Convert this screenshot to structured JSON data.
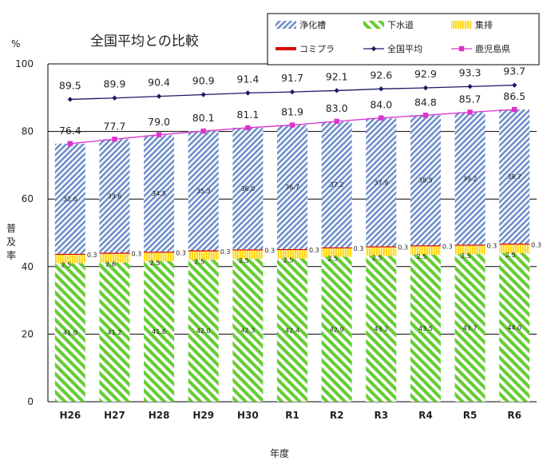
{
  "chart_data": {
    "type": "bar",
    "title": "全国平均との比較",
    "ylabel": "普及率",
    "yunit": "%",
    "xlabel": "年度",
    "ylim": [
      0,
      100
    ],
    "yticks": [
      0,
      20,
      40,
      60,
      80,
      100
    ],
    "categories": [
      "H26",
      "H27",
      "H28",
      "H29",
      "H30",
      "R1",
      "R2",
      "R3",
      "R4",
      "R5",
      "R6"
    ],
    "series": [
      {
        "name": "下水道",
        "values": [
          41.0,
          41.2,
          41.6,
          42.0,
          42.3,
          42.4,
          42.9,
          43.2,
          43.5,
          43.7,
          44.0
        ],
        "labels": [
          "41.0",
          "41.2",
          "41.6",
          "42.0",
          "42.3",
          "42.4",
          "42.9",
          "43.2",
          "43.5",
          "43.7",
          "44.0"
        ]
      },
      {
        "name": "集排",
        "values": [
          2.5,
          2.6,
          2.5,
          2.5,
          2.5,
          2.5,
          2.5,
          2.5,
          2.5,
          2.5,
          2.5
        ],
        "labels": [
          "2.5",
          "2.6",
          "2.5",
          "2.5",
          "2.5",
          "2.5",
          "2.5",
          "2.5",
          "2.5",
          "2.5",
          "2.5"
        ]
      },
      {
        "name": "コミプラ",
        "values": [
          0.3,
          0.3,
          0.3,
          0.3,
          0.3,
          0.3,
          0.3,
          0.3,
          0.3,
          0.3,
          0.3
        ],
        "labels": [
          "0.3",
          "0.3",
          "0.3",
          "0.3",
          "0.3",
          "0.3",
          "0.3",
          "0.3",
          "0.3",
          "0.3",
          "0.3"
        ]
      },
      {
        "name": "浄化槽",
        "values": [
          32.6,
          33.6,
          34.5,
          35.3,
          36.0,
          36.7,
          37.2,
          37.9,
          38.5,
          39.2,
          39.7
        ],
        "labels": [
          "32.6",
          "33.6",
          "34.5",
          "35.3",
          "36.0",
          "36.7",
          "37.2",
          "37.9",
          "38.5",
          "39.2",
          "39.7"
        ]
      },
      {
        "name": "全国平均",
        "type": "line",
        "values": [
          89.5,
          89.9,
          90.4,
          90.9,
          91.4,
          91.7,
          92.1,
          92.6,
          92.9,
          93.3,
          93.7
        ],
        "labels": [
          "89.5",
          "89.9",
          "90.4",
          "90.9",
          "91.4",
          "91.7",
          "92.1",
          "92.6",
          "92.9",
          "93.3",
          "93.7"
        ]
      },
      {
        "name": "鹿児島県",
        "type": "line",
        "values": [
          76.4,
          77.7,
          79.0,
          80.1,
          81.1,
          81.9,
          83.0,
          84.0,
          84.8,
          85.7,
          86.5
        ],
        "labels": [
          "76.4",
          "77.7",
          "79.0",
          "80.1",
          "81.1",
          "81.9",
          "83.0",
          "84.0",
          "84.8",
          "85.7",
          "86.5"
        ]
      }
    ],
    "legend": [
      "浄化槽",
      "下水道",
      "集排",
      "コミプラ",
      "全国平均",
      "鹿児島県"
    ],
    "colors": {
      "johkaso": "#6f8fca",
      "gesuido": "#66cc33",
      "shuhai": "#ffd200",
      "komipura": "#dd0000",
      "national": "#1a1a66",
      "kagoshima": "#dd33cc",
      "grid": "#000000"
    }
  }
}
